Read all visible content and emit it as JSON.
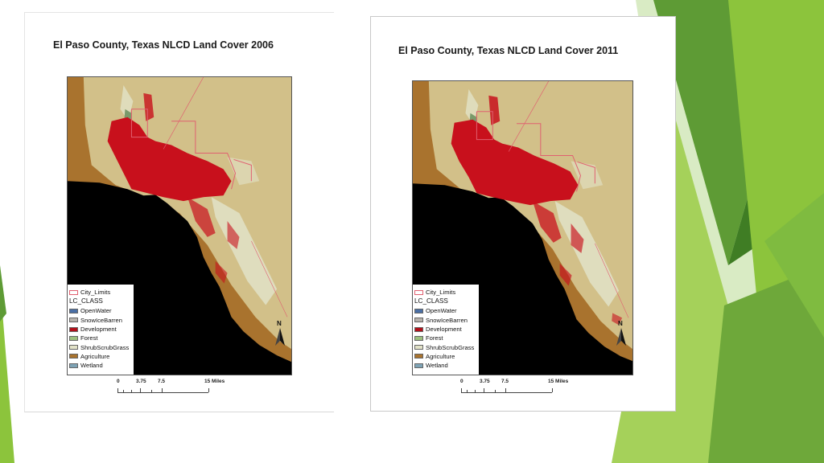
{
  "maps": [
    {
      "title": "El Paso County, Texas NLCD Land Cover 2006",
      "legend": {
        "boundary_label": "City_Limits",
        "class_title": "LC_CLASS",
        "classes": [
          {
            "label": "OpenWater",
            "color": "#4a6fa5"
          },
          {
            "label": "SnowIceBarren",
            "color": "#b8b3ad"
          },
          {
            "label": "Development",
            "color": "#b2101a"
          },
          {
            "label": "Forest",
            "color": "#9dc07e"
          },
          {
            "label": "ShrubScrubGrass",
            "color": "#e2e2c8"
          },
          {
            "label": "Agriculture",
            "color": "#a9732e"
          },
          {
            "label": "Wetland",
            "color": "#7ea3b5"
          }
        ]
      },
      "scale": {
        "ticks": [
          "0",
          "3.75",
          "7.5",
          "15 Miles"
        ]
      },
      "north_label": "N"
    },
    {
      "title": "El Paso County, Texas NLCD Land Cover 2011",
      "legend": {
        "boundary_label": "City_Limits",
        "class_title": "LC_CLASS",
        "classes": [
          {
            "label": "OpenWater",
            "color": "#4a6fa5"
          },
          {
            "label": "SnowIceBarren",
            "color": "#b8b3ad"
          },
          {
            "label": "Development",
            "color": "#b2101a"
          },
          {
            "label": "Forest",
            "color": "#9dc07e"
          },
          {
            "label": "ShrubScrubGrass",
            "color": "#e2e2c8"
          },
          {
            "label": "Agriculture",
            "color": "#a9732e"
          },
          {
            "label": "Wetland",
            "color": "#7ea3b5"
          }
        ]
      },
      "scale": {
        "ticks": [
          "0",
          "3.75",
          "7.5",
          "15 Miles"
        ]
      },
      "north_label": "N"
    }
  ],
  "colors": {
    "background_land": "#d2c089",
    "outside_county": "#000000",
    "city_limits_outline": "#e06070",
    "deco_green_dark": "#4f8a2a",
    "deco_green_light": "#8cc43c"
  }
}
